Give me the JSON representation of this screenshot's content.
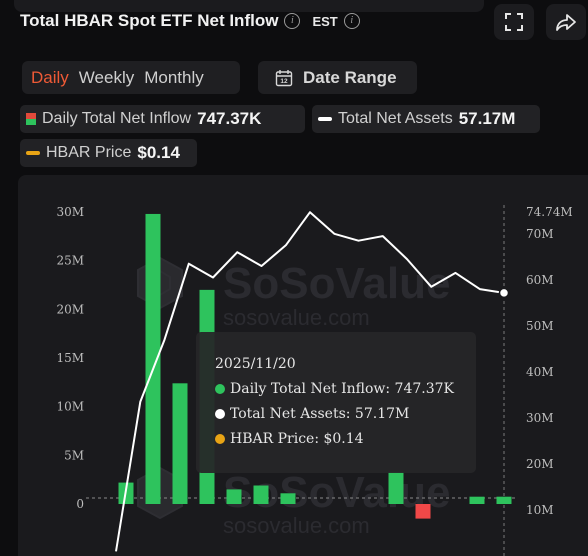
{
  "header": {
    "title": "Total HBAR Spot ETF Net Inflow",
    "timezone": "EST",
    "info_icon": "info-icon",
    "fullscreen_icon": "fullscreen-icon",
    "share_icon": "share-icon"
  },
  "period_tabs": [
    {
      "label": "Daily",
      "active": true
    },
    {
      "label": "Weekly",
      "active": false
    },
    {
      "label": "Monthly",
      "active": false
    }
  ],
  "date_range": {
    "label": "Date Range",
    "icon": "calendar-icon"
  },
  "summary": {
    "inflow_label": "Daily Total Net Inflow",
    "inflow_value": "747.37K",
    "assets_label": "Total Net Assets",
    "assets_value": "57.17M",
    "price_label": "HBAR Price",
    "price_value": "$0.14"
  },
  "watermark": {
    "brand": "SoSoValue",
    "url": "sosovalue.com"
  },
  "tooltip": {
    "date": "2025/11/20",
    "inflow": "Daily Total Net Inflow: 747.37K",
    "assets": "Total Net Assets: 57.17M",
    "price": "HBAR Price: $0.14"
  },
  "colors": {
    "accent": "#ee5a36",
    "inflow_positive": "#2ec35d",
    "inflow_negative": "#f14848",
    "assets_line": "#ffffff",
    "price": "#e8a415"
  },
  "chart_data": {
    "type": "bar",
    "left_axis": {
      "label": "Daily Total Net Inflow",
      "ticks": [
        "0",
        "5M",
        "10M",
        "15M",
        "20M",
        "25M",
        "30M"
      ],
      "min": 0,
      "max": 30
    },
    "right_axis": {
      "label": "Total Net Assets",
      "ticks": [
        "10M",
        "20M",
        "30M",
        "40M",
        "50M",
        "60M",
        "70M"
      ],
      "max_label": "74.74M",
      "min": 10,
      "max": 74.74
    },
    "series": [
      {
        "name": "Daily Total Net Inflow",
        "kind": "bar",
        "unit": "M",
        "values": [
          2.2,
          29.8,
          12.4,
          22.0,
          1.5,
          1.9,
          1.1,
          null,
          null,
          null,
          3.3,
          -1.5,
          null,
          0.75,
          0.75
        ]
      },
      {
        "name": "Total Net Assets",
        "kind": "line",
        "unit": "M",
        "values": [
          1.0,
          33.5,
          47.0,
          63.5,
          60.5,
          66.0,
          63.0,
          67.5,
          74.7,
          70.0,
          68.5,
          69.5,
          64.5,
          58.5,
          61.5,
          58.0,
          57.17
        ]
      },
      {
        "name": "HBAR Price",
        "kind": "line",
        "unit": "$",
        "values": [
          0.14
        ]
      }
    ],
    "grid": false,
    "legend": "top"
  }
}
